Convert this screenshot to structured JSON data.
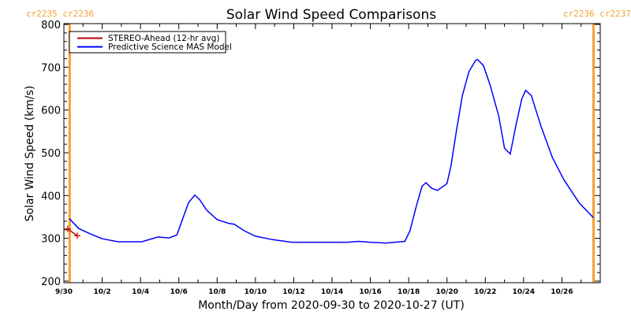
{
  "chart_data": {
    "type": "line",
    "title": "Solar Wind Speed Comparisons",
    "xlabel": "Month/Day from 2020-09-30 to 2020-10-27 (UT)",
    "ylabel": "Solar Wind Speed (km/s)",
    "xlim_days": [
      0,
      28
    ],
    "ylim": [
      200,
      800
    ],
    "x_tick_labels": [
      "9/30",
      "10/2",
      "10/4",
      "10/6",
      "10/8",
      "10/10",
      "10/12",
      "10/14",
      "10/16",
      "10/18",
      "10/20",
      "10/22",
      "10/24",
      "10/26"
    ],
    "y_ticks": [
      200,
      300,
      400,
      500,
      600,
      700,
      800
    ],
    "legend_position": "top-left",
    "carrington_markers": [
      {
        "day": 0.3,
        "label": "cr2235 cr2236",
        "side": "left"
      },
      {
        "day": 27.65,
        "label": "cr2236 cr2237",
        "side": "right"
      }
    ],
    "series": [
      {
        "name": "STEREO-Ahead (12-hr avg)",
        "color": "#c00000",
        "markers": true,
        "x": [
          0.2,
          0.7
        ],
        "y": [
          322,
          306
        ]
      },
      {
        "name": "Predictive Science MAS Model",
        "color": "#0000ff",
        "markers": false,
        "x": [
          0.29,
          0.78,
          1.4,
          2.0,
          2.84,
          4.07,
          4.9,
          5.5,
          5.9,
          6.5,
          6.83,
          7.08,
          7.45,
          8.0,
          8.6,
          8.9,
          9.4,
          10.0,
          10.9,
          11.9,
          14.8,
          15.4,
          16.0,
          16.8,
          17.8,
          18.07,
          18.4,
          18.7,
          18.9,
          19.2,
          19.5,
          20.0,
          20.2,
          20.5,
          20.8,
          21.15,
          21.5,
          21.6,
          21.9,
          22.26,
          22.7,
          23.0,
          23.3,
          23.6,
          23.9,
          24.1,
          24.4,
          24.9,
          25.5,
          26.1,
          26.9,
          27.65
        ],
        "y": [
          346,
          323,
          310,
          299,
          292,
          292,
          303,
          301,
          308,
          383,
          401,
          391,
          366,
          344,
          335,
          333,
          318,
          305,
          297,
          291,
          291,
          293,
          291,
          289,
          293,
          318,
          376,
          422,
          430,
          417,
          412,
          428,
          468,
          554,
          633,
          690,
          716,
          718,
          704,
          657,
          586,
          511,
          497,
          564,
          625,
          646,
          634,
          563,
          489,
          437,
          383,
          348
        ]
      }
    ]
  }
}
